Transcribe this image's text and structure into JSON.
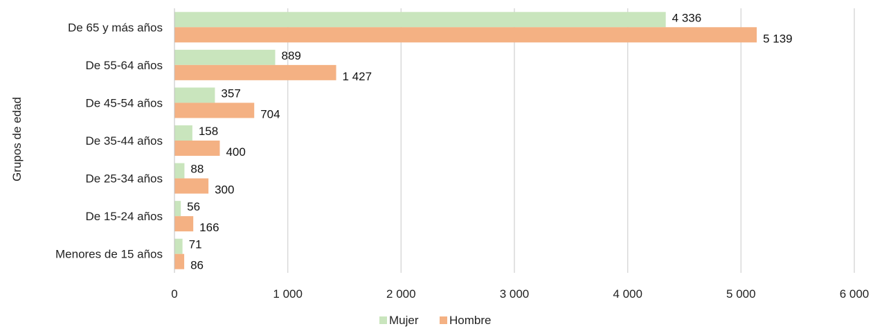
{
  "chart_data": {
    "type": "bar",
    "orientation": "horizontal",
    "categories": [
      "De 65 y más años",
      "De 55-64 años",
      "De 45-54 años",
      "De 35-44 años",
      "De 25-34 años",
      "De 15-24 años",
      "Menores de 15 años"
    ],
    "series": [
      {
        "name": "Mujer",
        "color": "#c9e5bd",
        "values": [
          4336,
          889,
          357,
          158,
          88,
          56,
          71
        ],
        "labels": [
          "4 336",
          "889",
          "357",
          "158",
          "88",
          "56",
          "71"
        ]
      },
      {
        "name": "Hombre",
        "color": "#f4b183",
        "values": [
          5139,
          1427,
          704,
          400,
          300,
          166,
          86
        ],
        "labels": [
          "5 139",
          "1 427",
          "704",
          "400",
          "300",
          "166",
          "86"
        ]
      }
    ],
    "xlim": [
      0,
      6000
    ],
    "xticks": [
      0,
      1000,
      2000,
      3000,
      4000,
      5000,
      6000
    ],
    "xtick_labels": [
      "0",
      "1 000",
      "2 000",
      "3 000",
      "4 000",
      "5 000",
      "6 000"
    ],
    "xlabel": "",
    "ylabel": "Grupos de edad",
    "grid": "vertical",
    "legend": "bottom"
  }
}
